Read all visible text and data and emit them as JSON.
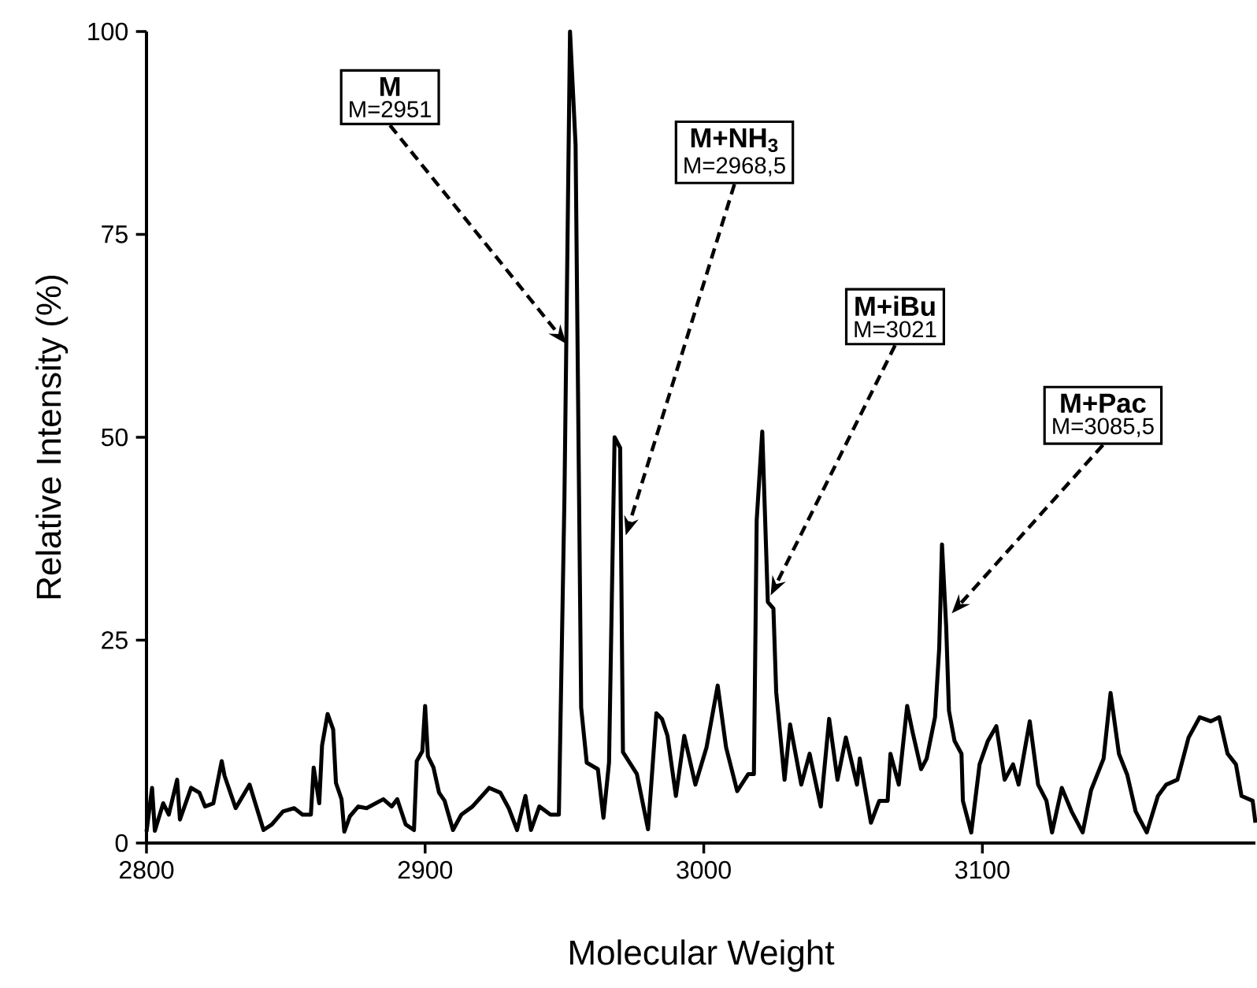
{
  "chart_data": {
    "type": "line",
    "xlabel": "Molecular Weight",
    "ylabel": "Relative Intensity (%)",
    "xlim": [
      2800,
      3198
    ],
    "ylim": [
      0,
      100
    ],
    "xticks": [
      2800,
      2900,
      3000,
      3100
    ],
    "yticks": [
      0,
      25,
      50,
      75,
      100
    ],
    "color": "#000000",
    "x": [
      2800,
      2802,
      2803,
      2806,
      2808,
      2811,
      2812,
      2816,
      2819,
      2821,
      2824,
      2827,
      2828,
      2832,
      2837,
      2842,
      2845,
      2849,
      2853,
      2856,
      2859,
      2860,
      2862,
      2863,
      2865,
      2867,
      2868,
      2870,
      2871,
      2873,
      2876,
      2879,
      2885,
      2888,
      2890,
      2893,
      2896,
      2897,
      2899,
      2900,
      2901,
      2903,
      2905,
      2907,
      2910,
      2913,
      2917,
      2923,
      2927,
      2930,
      2933,
      2936,
      2938,
      2941,
      2945,
      2948,
      2950,
      2952,
      2954,
      2956,
      2958,
      2962,
      2964,
      2966,
      2968,
      2970,
      2971,
      2976,
      2980,
      2983,
      2985,
      2987,
      2990,
      2993,
      2997,
      3001,
      3005,
      3008,
      3012,
      3016,
      3018,
      3019,
      3021,
      3023,
      3025,
      3026,
      3029,
      3031,
      3035,
      3038,
      3042,
      3045,
      3048,
      3051,
      3055,
      3056,
      3060,
      3063,
      3066,
      3067,
      3070,
      3073,
      3075,
      3078,
      3080,
      3083,
      3084.5,
      3085.5,
      3087,
      3088,
      3090,
      3092.5,
      3093,
      3096,
      3099,
      3102,
      3105,
      3108,
      3111,
      3113,
      3117,
      3120,
      3123,
      3125,
      3128.5,
      3132,
      3136,
      3139,
      3143.5,
      3146,
      3149,
      3152,
      3155,
      3159,
      3163,
      3166,
      3170,
      3174,
      3178,
      3182,
      3185,
      3188,
      3191,
      3193,
      3197,
      3198
    ],
    "values": [
      1.4,
      6.8,
      1.5,
      4.9,
      3.5,
      7.8,
      2.9,
      6.8,
      6.2,
      4.5,
      4.9,
      10.1,
      8.3,
      4.3,
      7.2,
      1.6,
      2.3,
      3.9,
      4.3,
      3.5,
      3.5,
      9.3,
      4.9,
      12,
      15.9,
      14,
      7.4,
      5.4,
      1.4,
      3.3,
      4.5,
      4.3,
      5.4,
      4.5,
      5.4,
      2.3,
      1.6,
      10.1,
      11.3,
      16.9,
      10.7,
      9.3,
      6.2,
      5.2,
      1.6,
      3.5,
      4.5,
      6.8,
      6.2,
      4.3,
      1.6,
      5.8,
      1.6,
      4.5,
      3.5,
      3.5,
      42.5,
      100,
      86,
      16.7,
      9.9,
      9.1,
      3.1,
      9.9,
      50,
      48.7,
      11.2,
      8.5,
      1.7,
      16,
      15.3,
      13.2,
      5.8,
      13.2,
      7.2,
      11.8,
      19.4,
      11.8,
      6.4,
      8.5,
      8.5,
      39.8,
      50.7,
      29.7,
      28.9,
      18.6,
      7.8,
      14.6,
      7.2,
      11,
      4.5,
      15.3,
      7.8,
      13,
      7.2,
      10.4,
      2.5,
      5.2,
      5.2,
      11,
      7.2,
      16.9,
      13.6,
      9.1,
      10.4,
      15.5,
      24,
      36.8,
      26.7,
      16.3,
      12.6,
      11,
      5.2,
      1.3,
      9.7,
      12.6,
      14.4,
      7.8,
      9.7,
      7.2,
      15,
      7.2,
      5.2,
      1.3,
      6.8,
      3.9,
      1.3,
      6.5,
      10.4,
      18.5,
      11,
      8.4,
      3.9,
      1.3,
      5.8,
      7.2,
      7.8,
      13,
      15.5,
      15,
      15.5,
      11,
      9.7,
      5.8,
      5.2,
      2.5
    ],
    "annotations": [
      "M",
      {
        "text": "M=2951",
        "x": 2950.7,
        "y": 61.5
      },
      "M+NH$_{3}$",
      {
        "text": "M=2968,5",
        "x": 2972,
        "y": 37.9
      },
      "M+iBu",
      {
        "text": "M=3021",
        "x": 3024,
        "y": 30.5
      },
      "M+Pac",
      {
        "text": "M=3085,5",
        "x": 3089,
        "y": 28.3
      }
    ]
  }
}
